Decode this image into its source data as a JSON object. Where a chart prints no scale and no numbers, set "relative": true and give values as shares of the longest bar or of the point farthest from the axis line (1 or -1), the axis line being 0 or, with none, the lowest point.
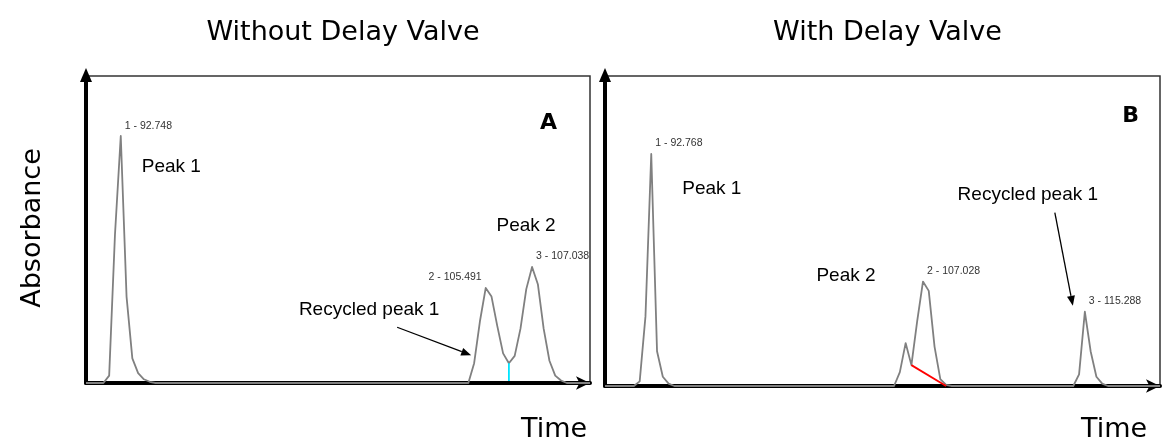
{
  "chart_data": [
    {
      "type": "line",
      "title": "Without Delay Valve",
      "xlabel": "Time",
      "ylabel": "Absorbance",
      "relative": true,
      "marker": "none",
      "categories": [
        null,
        null,
        null,
        null,
        null,
        null,
        null,
        null,
        null,
        null,
        null,
        null,
        null,
        null,
        null,
        null,
        null,
        null,
        null,
        null,
        null,
        null,
        null,
        null,
        null,
        null,
        null,
        null,
        null,
        null,
        null,
        null,
        null,
        null,
        null,
        null,
        null,
        null,
        null,
        null,
        null,
        null,
        null,
        null,
        null,
        null,
        null,
        null,
        null,
        null,
        null,
        null,
        null,
        null,
        null,
        null,
        null,
        null,
        null,
        null,
        null,
        null,
        null,
        null,
        null,
        null,
        null,
        null,
        null,
        null,
        null,
        null,
        null,
        null,
        null,
        null,
        null,
        null,
        null,
        null,
        null,
        null,
        null,
        null,
        null,
        null,
        null,
        null
      ],
      "series": [
        {
          "color": "#808080",
          "values": [
            0,
            0,
            0,
            0,
            0.03,
            0.6,
            1,
            0.35,
            0.1,
            0.04,
            0.015,
            0.005,
            0,
            0,
            0,
            0,
            0,
            0,
            0,
            0,
            0,
            0,
            0,
            0,
            0,
            0,
            0,
            0,
            0,
            0,
            0,
            0,
            0,
            0,
            0,
            0,
            0,
            0,
            0,
            0,
            0,
            0,
            0,
            0,
            0,
            0,
            0,
            0,
            0,
            0,
            0,
            0,
            0,
            0,
            0,
            0,
            0,
            0,
            0,
            0,
            0,
            0,
            0,
            0,
            0,
            0,
            0,
            0.08,
            0.25,
            0.385,
            0.35,
            0.23,
            0.12,
            0.08,
            0.11,
            0.22,
            0.38,
            0.47,
            0.4,
            0.22,
            0.09,
            0.03,
            0.01,
            0,
            0,
            0,
            0,
            0
          ]
        }
      ],
      "annotations": [
        "A",
        "1 - 92.748",
        "2 - 105.491",
        "3 - 107.038",
        "Peak 1",
        "Peak 2",
        "Recycled peak 1"
      ]
    },
    {
      "type": "line",
      "title": "With Delay Valve",
      "xlabel": "Time",
      "relative": true,
      "marker": "none",
      "categories": [
        null,
        null,
        null,
        null,
        null,
        null,
        null,
        null,
        null,
        null,
        null,
        null,
        null,
        null,
        null,
        null,
        null,
        null,
        null,
        null,
        null,
        null,
        null,
        null,
        null,
        null,
        null,
        null,
        null,
        null,
        null,
        null,
        null,
        null,
        null,
        null,
        null,
        null,
        null,
        null,
        null,
        null,
        null,
        null,
        null,
        null,
        null,
        null,
        null,
        null,
        null,
        null,
        null,
        null,
        null,
        null,
        null,
        null,
        null,
        null,
        null,
        null,
        null,
        null,
        null,
        null,
        null,
        null,
        null,
        null,
        null,
        null,
        null,
        null,
        null,
        null,
        null,
        null,
        null,
        null,
        null,
        null,
        null,
        null,
        null,
        null,
        null,
        null,
        null,
        null,
        null,
        null,
        null,
        null,
        null,
        null,
        null
      ],
      "series": [
        {
          "color": "#808080",
          "values": [
            0,
            0,
            0,
            0,
            0,
            0,
            0.02,
            0.3,
            1,
            0.15,
            0.04,
            0.01,
            0,
            0,
            0,
            0,
            0,
            0,
            0,
            0,
            0,
            0,
            0,
            0,
            0,
            0,
            0,
            0,
            0,
            0,
            0,
            0,
            0,
            0,
            0,
            0,
            0,
            0,
            0,
            0,
            0,
            0,
            0,
            0,
            0,
            0,
            0,
            0,
            0,
            0,
            0,
            0.06,
            0.185,
            0.09,
            0.28,
            0.45,
            0.41,
            0.17,
            0.03,
            0.005,
            0,
            0,
            0,
            0,
            0,
            0,
            0,
            0,
            0,
            0,
            0,
            0,
            0,
            0,
            0,
            0,
            0,
            0,
            0,
            0,
            0,
            0,
            0.05,
            0.32,
            0.15,
            0.04,
            0.01,
            0,
            0,
            0,
            0,
            0,
            0,
            0,
            0,
            0,
            0
          ]
        },
        {
          "color": "#ff0000",
          "values": [
            null,
            null,
            null,
            null,
            null,
            null,
            null,
            null,
            null,
            null,
            null,
            null,
            null,
            null,
            null,
            null,
            null,
            null,
            null,
            null,
            null,
            null,
            null,
            null,
            null,
            null,
            null,
            null,
            null,
            null,
            null,
            null,
            null,
            null,
            null,
            null,
            null,
            null,
            null,
            null,
            null,
            null,
            null,
            null,
            null,
            null,
            null,
            null,
            null,
            null,
            null,
            null,
            null,
            0.09,
            null,
            null,
            null,
            null,
            null,
            0,
            null,
            null,
            null,
            null,
            null,
            null,
            null,
            null,
            null,
            null,
            null,
            null,
            null,
            null,
            null,
            null,
            null,
            null,
            null,
            null,
            null,
            null,
            null,
            null,
            null,
            null,
            null,
            null,
            null,
            null,
            null,
            null,
            null,
            null,
            null,
            null,
            null
          ]
        }
      ],
      "annotations": [
        "B",
        "1 - 92.768",
        "2 - 107.028",
        "3 - 115.288",
        "Peak 1",
        "Peak 2",
        "Recycled peak 1"
      ]
    }
  ]
}
